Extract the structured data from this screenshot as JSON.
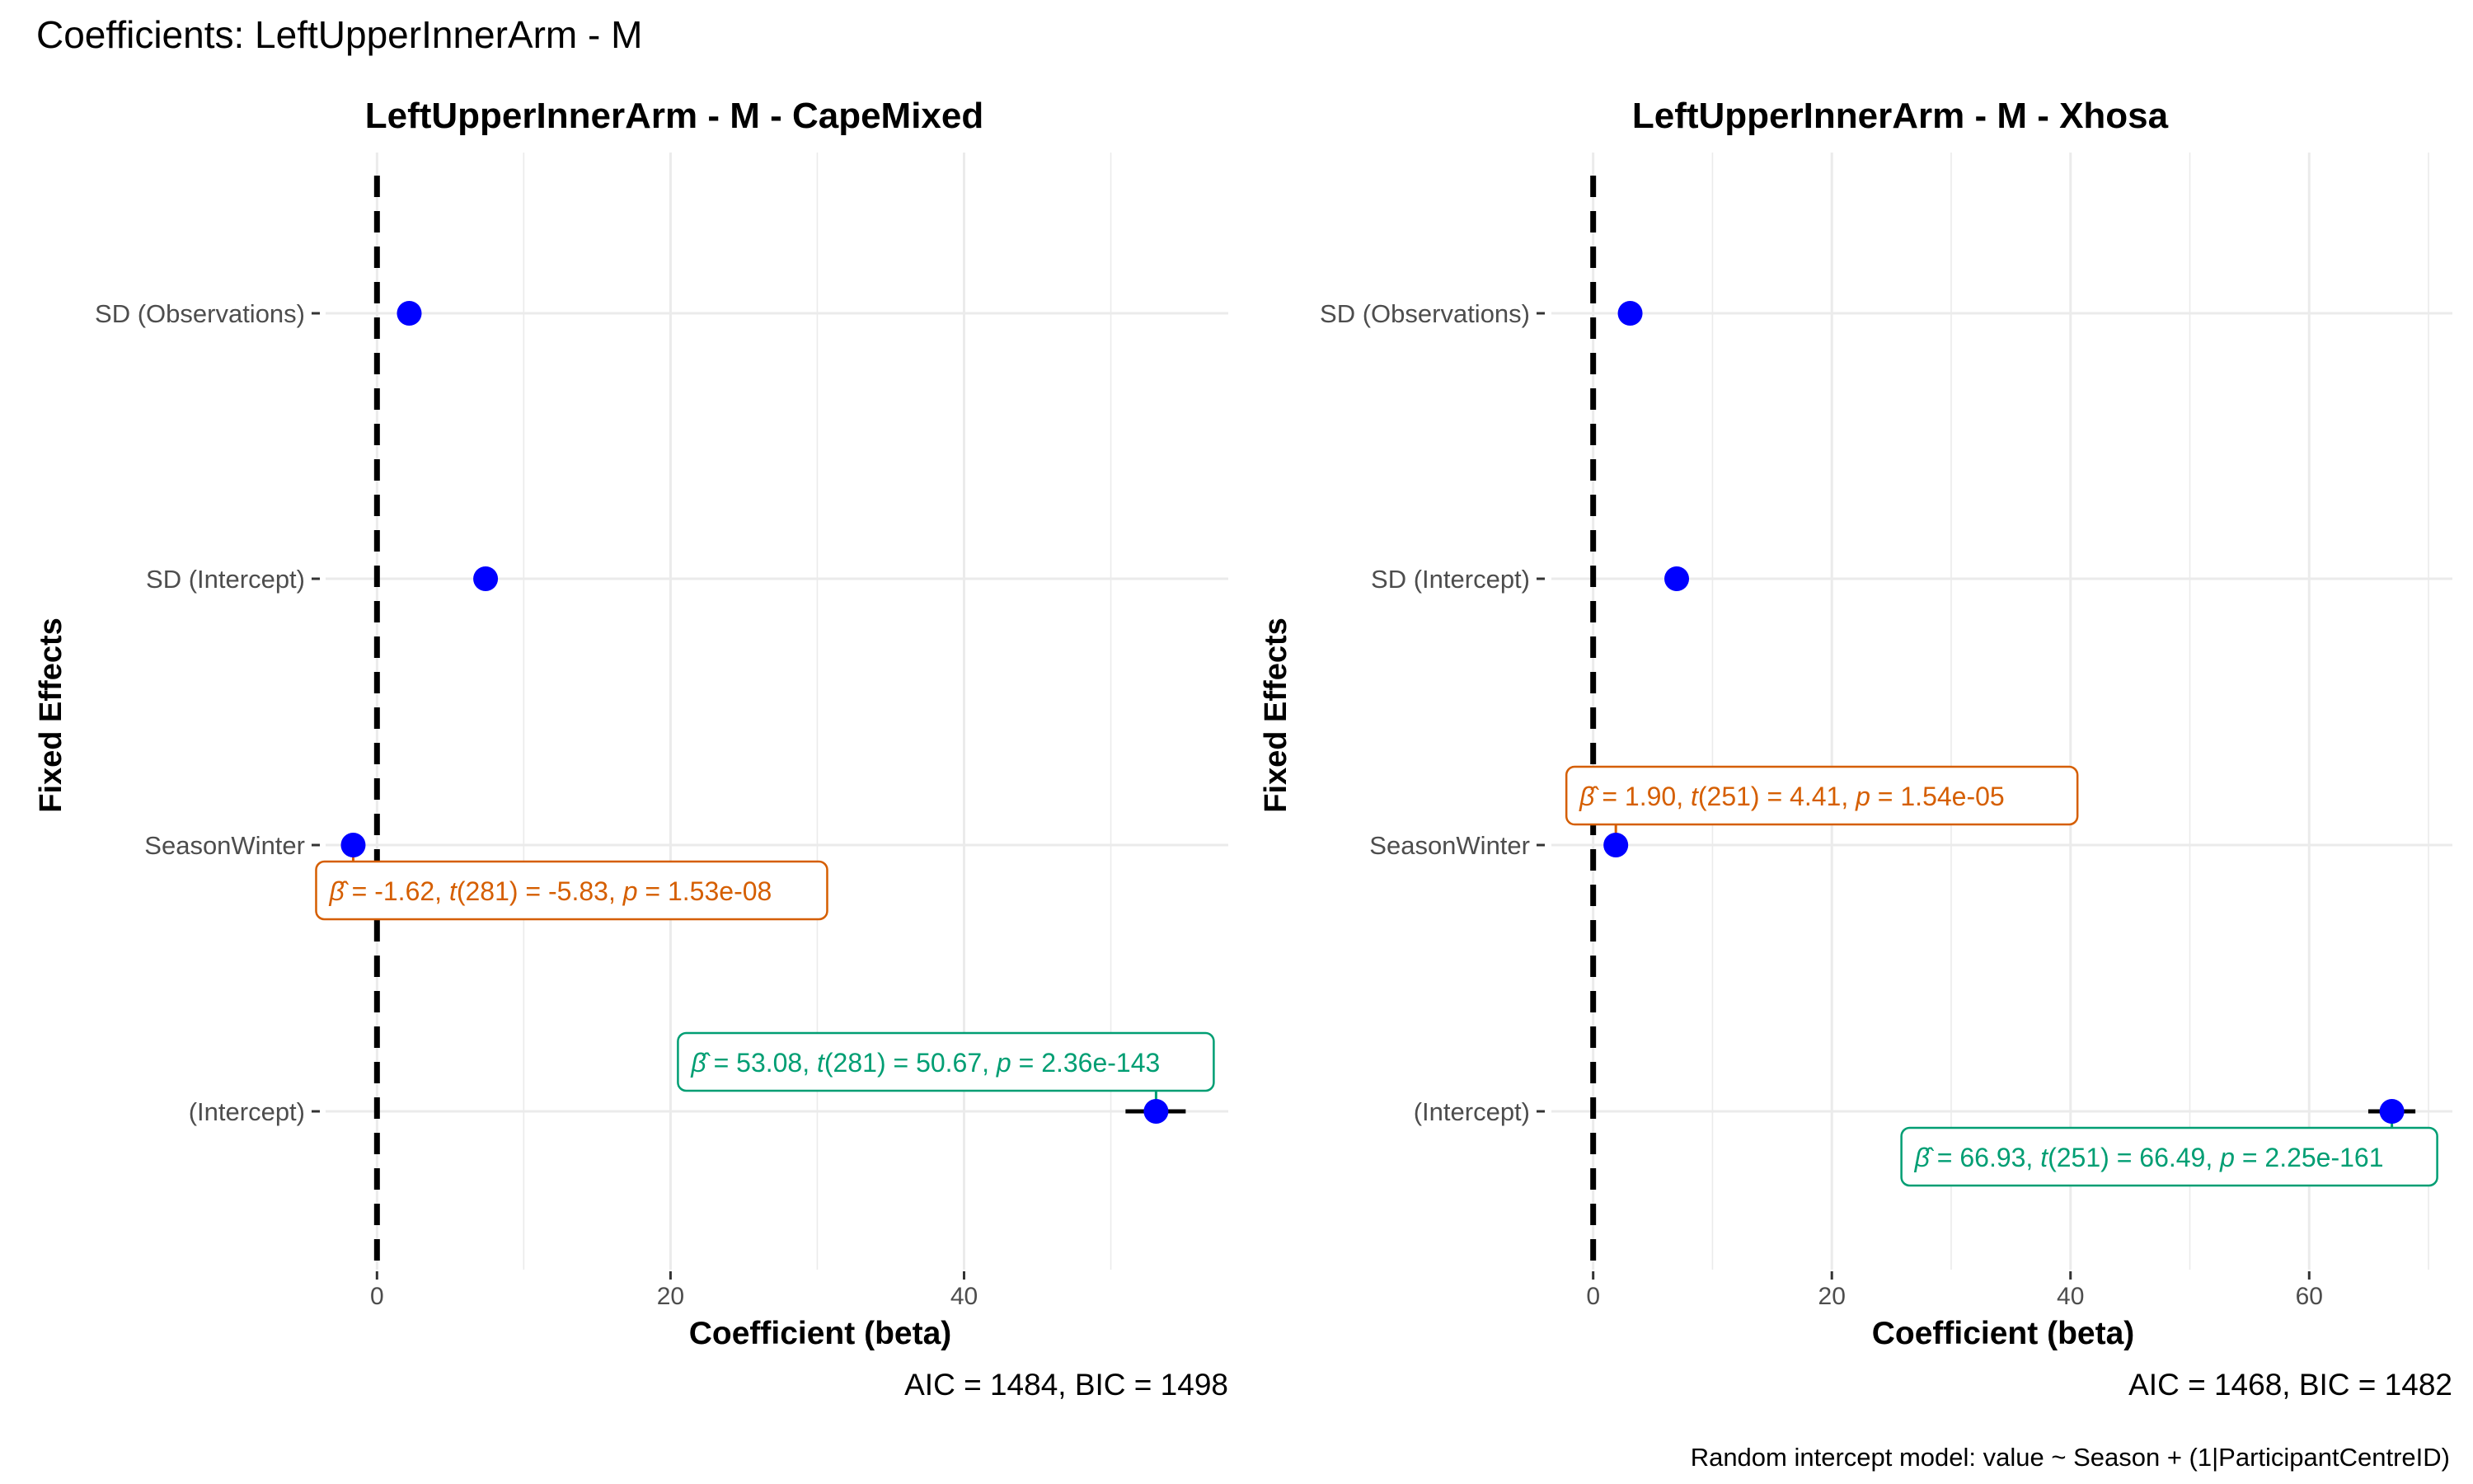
{
  "figure_title": "Coefficients: LeftUpperInnerArm - M",
  "caption": "Random intercept model: value ~ Season + (1|ParticipantCentreID)",
  "chart_data": [
    {
      "type": "scatter",
      "title": "LeftUpperInnerArm - M - CapeMixed",
      "xlabel": "Coefficient (beta)",
      "ylabel": "Fixed Effects",
      "subtitle": "AIC = 1484, BIC = 1498",
      "xlim": [
        -3.5,
        58
      ],
      "xticks": [
        0,
        20,
        40
      ],
      "grid": true,
      "zero_line": true,
      "categories": [
        "SD (Observations)",
        "SD (Intercept)",
        "SeasonWinter",
        "(Intercept)"
      ],
      "points": [
        {
          "category": "SD (Observations)",
          "x": 2.2
        },
        {
          "category": "SD (Intercept)",
          "x": 7.4
        },
        {
          "category": "SeasonWinter",
          "x": -1.62,
          "ci": [
            -2.17,
            -1.07
          ],
          "label": {
            "beta": "-1.62",
            "df": "281",
            "t": "-5.83",
            "p": "1.53e-08",
            "color": "#D55E00",
            "placement": "below-right"
          }
        },
        {
          "category": "(Intercept)",
          "x": 53.08,
          "ci": [
            51.0,
            55.1
          ],
          "label": {
            "beta": "53.08",
            "df": "281",
            "t": "50.67",
            "p": "2.36e-143",
            "color": "#009E73",
            "placement": "above-left"
          }
        }
      ]
    },
    {
      "type": "scatter",
      "title": "LeftUpperInnerArm - M - Xhosa",
      "xlabel": "Coefficient (beta)",
      "ylabel": "Fixed Effects",
      "subtitle": "AIC = 1468, BIC = 1482",
      "xlim": [
        -3.5,
        72
      ],
      "xticks": [
        0,
        20,
        40,
        60
      ],
      "grid": true,
      "zero_line": true,
      "categories": [
        "SD (Observations)",
        "SD (Intercept)",
        "SeasonWinter",
        "(Intercept)"
      ],
      "points": [
        {
          "category": "SD (Observations)",
          "x": 3.1
        },
        {
          "category": "SD (Intercept)",
          "x": 7.0
        },
        {
          "category": "SeasonWinter",
          "x": 1.9,
          "ci": [
            1.05,
            2.75
          ],
          "label": {
            "beta": "1.90",
            "df": "251",
            "t": "4.41",
            "p": "1.54e-05",
            "color": "#D55E00",
            "placement": "above-right"
          }
        },
        {
          "category": "(Intercept)",
          "x": 66.93,
          "ci": [
            64.95,
            68.9
          ],
          "label": {
            "beta": "66.93",
            "df": "251",
            "t": "66.49",
            "p": "2.25e-161",
            "color": "#009E73",
            "placement": "below-left"
          }
        }
      ]
    }
  ]
}
